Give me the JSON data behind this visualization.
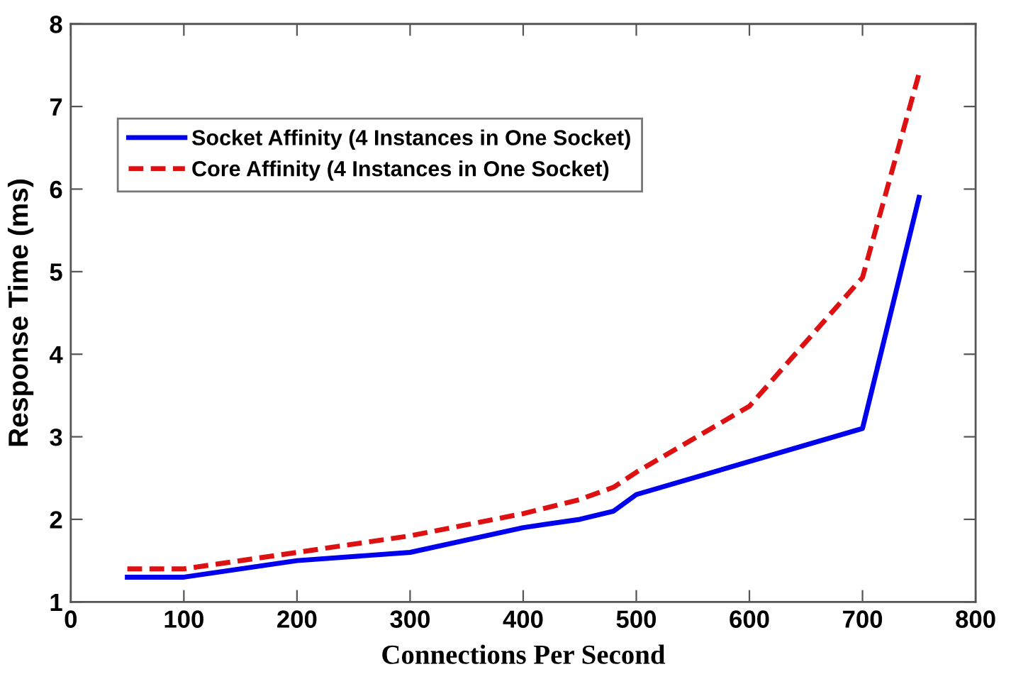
{
  "chart_data": {
    "type": "line",
    "xlabel": "Connections Per Second",
    "ylabel": "Response Time (ms)",
    "xlim": [
      0,
      800
    ],
    "xticks": [
      0,
      100,
      200,
      300,
      400,
      500,
      600,
      700,
      800
    ],
    "ylim": [
      1,
      8
    ],
    "yticks": [
      1,
      2,
      3,
      4,
      5,
      6,
      7,
      8
    ],
    "grid": false,
    "legend": "top left",
    "marker": "none",
    "series": [
      {
        "name": "Socket Affinity (4 Instances in One Socket)",
        "color": "#0000ee",
        "line_style": "solid",
        "x": [
          50,
          100,
          200,
          300,
          400,
          450,
          480,
          500,
          700,
          750
        ],
        "values": [
          1.3,
          1.3,
          1.5,
          1.6,
          1.9,
          2.0,
          2.1,
          2.3,
          3.1,
          5.9
        ]
      },
      {
        "name": "Core Affinity (4 Instances in One Socket)",
        "color": "#dd1111",
        "line_style": "dashed",
        "x": [
          50,
          100,
          200,
          300,
          400,
          450,
          480,
          500,
          600,
          700,
          750
        ],
        "values": [
          1.4,
          1.4,
          1.6,
          1.8,
          2.07,
          2.24,
          2.39,
          2.57,
          3.37,
          4.93,
          7.4
        ]
      }
    ]
  }
}
